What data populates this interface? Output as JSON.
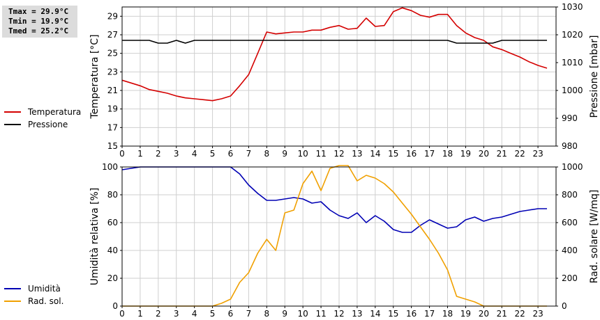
{
  "stats": {
    "tmax": "Tmax = 29.9°C",
    "tmin": "Tmin = 19.9°C",
    "tmed": "Tmed = 25.2°C"
  },
  "chart_data": [
    {
      "type": "line",
      "x_ticks": [
        "0",
        "1",
        "2",
        "3",
        "4",
        "5",
        "6",
        "7",
        "8",
        "9",
        "10",
        "11",
        "12",
        "13",
        "14",
        "15",
        "16",
        "17",
        "18",
        "19",
        "20",
        "21",
        "22",
        "23"
      ],
      "xlim": [
        0,
        24
      ],
      "grid": true,
      "legend_placement": "left",
      "y_left": {
        "label": "Temperatura [°C]",
        "lim": [
          15,
          30
        ],
        "ticks": [
          15,
          17,
          19,
          21,
          23,
          25,
          27,
          29
        ]
      },
      "y_right": {
        "label": "Pressione [mbar]",
        "lim": [
          980,
          1030
        ],
        "ticks": [
          980,
          990,
          1000,
          1010,
          1020,
          1030
        ]
      },
      "series": [
        {
          "name": "Temperatura",
          "axis": "left",
          "color": "#d40000",
          "x": [
            0,
            0.5,
            1,
            1.5,
            2,
            2.5,
            3,
            3.5,
            4,
            4.5,
            5,
            5.5,
            6,
            6.5,
            7,
            7.5,
            8,
            8.5,
            9,
            9.5,
            10,
            10.5,
            11,
            11.5,
            12,
            12.5,
            13,
            13.5,
            14,
            14.5,
            15,
            15.5,
            16,
            16.5,
            17,
            17.5,
            18,
            18.5,
            19,
            19.5,
            20,
            20.5,
            21,
            21.5,
            22,
            22.5,
            23,
            23.5
          ],
          "y": [
            22.1,
            21.8,
            21.5,
            21.1,
            20.9,
            20.7,
            20.4,
            20.2,
            20.1,
            20.0,
            19.9,
            20.1,
            20.4,
            21.5,
            22.7,
            25.0,
            27.3,
            27.1,
            27.2,
            27.3,
            27.3,
            27.5,
            27.5,
            27.8,
            28.0,
            27.6,
            27.7,
            28.8,
            27.9,
            28.0,
            29.5,
            29.9,
            29.6,
            29.1,
            28.9,
            29.2,
            29.2,
            28.0,
            27.2,
            26.7,
            26.4,
            25.7,
            25.4,
            25.0,
            24.6,
            24.1,
            23.7,
            23.4
          ]
        },
        {
          "name": "Pressione",
          "axis": "right",
          "color": "#000000",
          "x": [
            0,
            0.5,
            1,
            1.5,
            2,
            2.5,
            3,
            3.5,
            4,
            4.5,
            5,
            5.5,
            6,
            6.5,
            7,
            7.5,
            8,
            8.5,
            9,
            9.5,
            10,
            10.5,
            11,
            11.5,
            12,
            12.5,
            13,
            13.5,
            14,
            14.5,
            15,
            15.5,
            16,
            16.5,
            17,
            17.5,
            18,
            18.5,
            19,
            19.5,
            20,
            20.5,
            21,
            21.5,
            22,
            22.5,
            23,
            23.5
          ],
          "y": [
            1018,
            1018,
            1018,
            1018,
            1017,
            1017,
            1018,
            1017,
            1018,
            1018,
            1018,
            1018,
            1018,
            1018,
            1018,
            1018,
            1018,
            1018,
            1018,
            1018,
            1018,
            1018,
            1018,
            1018,
            1018,
            1018,
            1018,
            1018,
            1018,
            1018,
            1018,
            1018,
            1018,
            1018,
            1018,
            1018,
            1018,
            1017,
            1017,
            1017,
            1017,
            1017,
            1018,
            1018,
            1018,
            1018,
            1018,
            1018
          ]
        }
      ]
    },
    {
      "type": "line",
      "x_ticks": [
        "0",
        "1",
        "2",
        "3",
        "4",
        "5",
        "6",
        "7",
        "8",
        "9",
        "10",
        "11",
        "12",
        "13",
        "14",
        "15",
        "16",
        "17",
        "18",
        "19",
        "20",
        "21",
        "22",
        "23"
      ],
      "xlim": [
        0,
        24
      ],
      "grid": true,
      "legend_placement": "left",
      "y_left": {
        "label": "Umidità relativa [%]",
        "lim": [
          0,
          100
        ],
        "ticks": [
          0,
          20,
          40,
          60,
          80,
          100
        ]
      },
      "y_right": {
        "label": "Rad. solare [W/mq]",
        "lim": [
          0,
          1000
        ],
        "ticks": [
          0,
          200,
          400,
          600,
          800,
          1000
        ]
      },
      "series": [
        {
          "name": "Umidità",
          "axis": "left",
          "color": "#0000b4",
          "x": [
            0,
            0.5,
            1,
            1.5,
            2,
            2.5,
            3,
            3.5,
            4,
            4.5,
            5,
            5.5,
            6,
            6.5,
            7,
            7.5,
            8,
            8.5,
            9,
            9.5,
            10,
            10.5,
            11,
            11.5,
            12,
            12.5,
            13,
            13.5,
            14,
            14.5,
            15,
            15.5,
            16,
            16.5,
            17,
            17.5,
            18,
            18.5,
            19,
            19.5,
            20,
            20.5,
            21,
            21.5,
            22,
            22.5,
            23,
            23.5
          ],
          "y": [
            98,
            99,
            100,
            100,
            100,
            100,
            100,
            100,
            100,
            100,
            100,
            100,
            100,
            95,
            87,
            81,
            76,
            76,
            77,
            78,
            77,
            74,
            75,
            69,
            65,
            63,
            67,
            60,
            65,
            61,
            55,
            53,
            53,
            58,
            62,
            59,
            56,
            57,
            62,
            64,
            61,
            63,
            64,
            66,
            68,
            69,
            70,
            70
          ]
        },
        {
          "name": "Rad. sol.",
          "axis": "right",
          "color": "#f0a000",
          "x": [
            0,
            0.5,
            1,
            1.5,
            2,
            2.5,
            3,
            3.5,
            4,
            4.5,
            5,
            5.5,
            6,
            6.5,
            7,
            7.5,
            8,
            8.5,
            9,
            9.5,
            10,
            10.5,
            11,
            11.5,
            12,
            12.5,
            13,
            13.5,
            14,
            14.5,
            15,
            15.5,
            16,
            16.5,
            17,
            17.5,
            18,
            18.5,
            19,
            19.5,
            20,
            20.5,
            21,
            21.5,
            22,
            22.5,
            23,
            23.5
          ],
          "y": [
            0,
            0,
            0,
            0,
            0,
            0,
            0,
            0,
            0,
            0,
            0,
            20,
            50,
            170,
            240,
            380,
            480,
            400,
            670,
            690,
            880,
            970,
            830,
            990,
            1010,
            1010,
            900,
            940,
            920,
            880,
            820,
            740,
            660,
            570,
            480,
            380,
            260,
            70,
            50,
            30,
            0,
            0,
            0,
            0,
            0,
            0,
            0,
            0
          ]
        }
      ]
    }
  ]
}
